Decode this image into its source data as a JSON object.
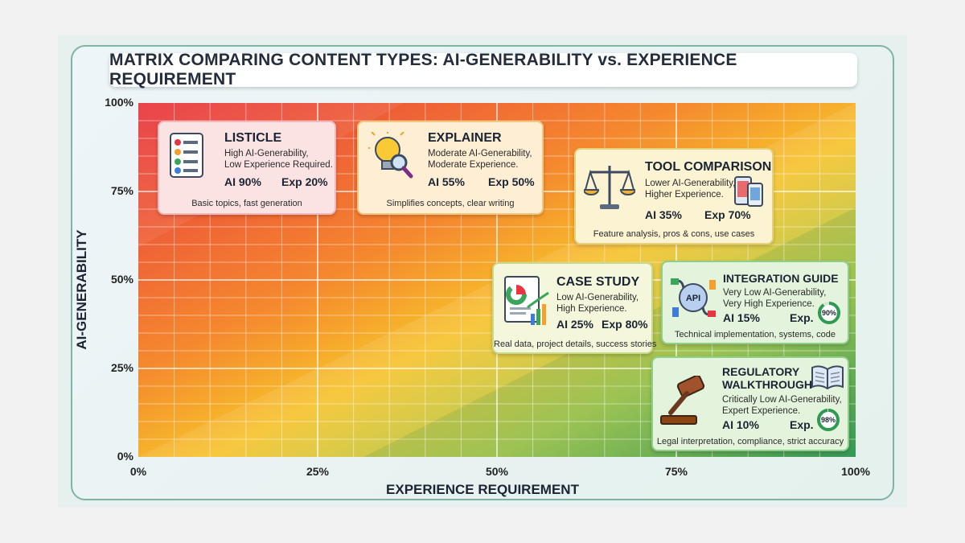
{
  "title": "MATRIX COMPARING CONTENT TYPES: AI-GENERABILITY vs. EXPERIENCE REQUIREMENT",
  "chart_data": {
    "type": "scatter",
    "xlabel": "EXPERIENCE REQUIREMENT",
    "ylabel": "AI-GENERABILITY",
    "xlim": [
      0,
      100
    ],
    "ylim": [
      0,
      100
    ],
    "xticks": [
      "0%",
      "25%",
      "50%",
      "75%",
      "100%"
    ],
    "yticks": [
      "0%",
      "25%",
      "50%",
      "75%",
      "100%"
    ],
    "grid": true,
    "colors": {
      "high_ai": "#e8353f",
      "mid": "#f6b820",
      "high_exp": "#2e9a52"
    },
    "points": [
      {
        "name": "LISTICLE",
        "desc": [
          "High AI-Generability,",
          "Low Experience Required."
        ],
        "ai_label": "AI 90%",
        "exp_label": "Exp 20%",
        "ai": 90,
        "exp": 20,
        "note": "Basic topics, fast generation"
      },
      {
        "name": "EXPLAINER",
        "desc": [
          "Moderate AI-Generability,",
          "Moderate Experience."
        ],
        "ai_label": "AI 55%",
        "exp_label": "Exp 50%",
        "ai": 55,
        "exp": 50,
        "note": "Simplifies concepts, clear writing"
      },
      {
        "name": "TOOL COMPARISON",
        "desc": [
          "Lower AI-Generability,",
          "Higher Experience."
        ],
        "ai_label": "AI 35%",
        "exp_label": "Exp 70%",
        "ai": 35,
        "exp": 70,
        "note": "Feature analysis, pros & cons, use cases"
      },
      {
        "name": "CASE STUDY",
        "desc": [
          "Low AI-Generability,",
          "High Experience."
        ],
        "ai_label": "AI 25%",
        "exp_label": "Exp 80%",
        "ai": 25,
        "exp": 80,
        "note": "Real data, project details, success stories"
      },
      {
        "name": "INTEGRATION GUIDE",
        "desc": [
          "Very Low AI-Generability,",
          "Very High Experience."
        ],
        "ai_label": "AI 15%",
        "exp_label": "Exp.",
        "ring": "90%",
        "ai": 15,
        "exp": 90,
        "note": "Technical implementation, systems, code"
      },
      {
        "name": "REGULATORY WALKTHROUGH",
        "name_lines": [
          "REGULATORY",
          "WALKTHROUGH"
        ],
        "desc": [
          "Critically Low AI-Generability,",
          "Expert Experience."
        ],
        "ai_label": "AI 10%",
        "exp_label": "Exp.",
        "ring": "98%",
        "ai": 10,
        "exp": 98,
        "note": "Legal interpretation, compliance, strict accuracy"
      }
    ]
  },
  "icons": {
    "listicle": "checklist-icon",
    "explainer": "lightbulb-magnifier-icon",
    "tool_comparison": "balance-scale-icon",
    "tool_devices": "devices-icon",
    "case_study": "report-chart-icon",
    "integration": "api-plug-icon",
    "regulatory": "gavel-icon",
    "regulatory_book": "open-book-icon"
  }
}
